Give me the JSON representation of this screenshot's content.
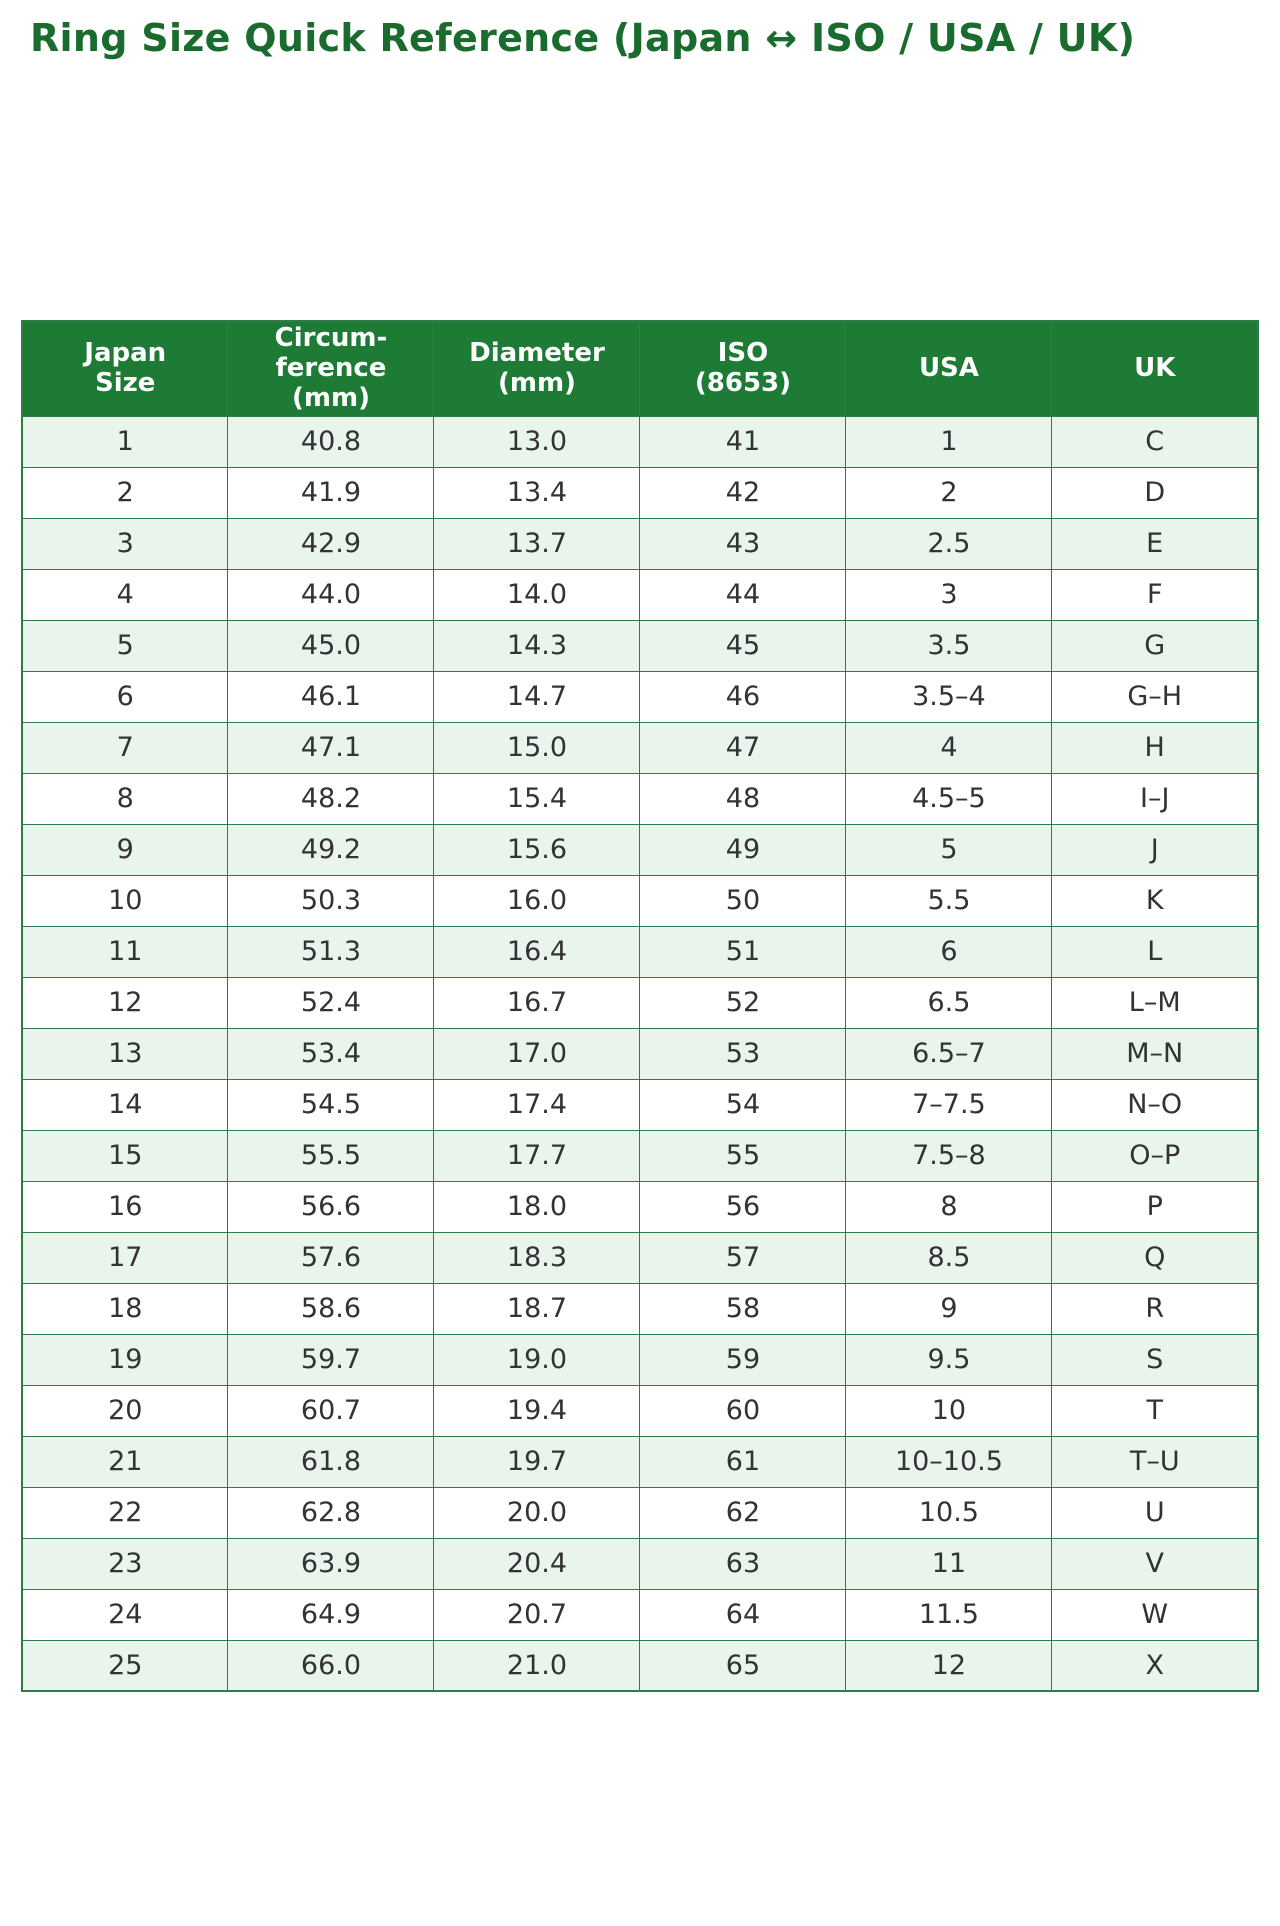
{
  "title": "Ring Size Quick Reference (Japan ↔ ISO / USA / UK)",
  "chart_data": {
    "type": "table",
    "title": "Ring Size Quick Reference (Japan ↔ ISO / USA / UK)",
    "columns": [
      "Japan\nSize",
      "Circum-\nference\n(mm)",
      "Diameter\n(mm)",
      "ISO\n(8653)",
      "USA",
      "UK"
    ],
    "rows": [
      [
        "1",
        "40.8",
        "13.0",
        "41",
        "1",
        "C"
      ],
      [
        "2",
        "41.9",
        "13.4",
        "42",
        "2",
        "D"
      ],
      [
        "3",
        "42.9",
        "13.7",
        "43",
        "2.5",
        "E"
      ],
      [
        "4",
        "44.0",
        "14.0",
        "44",
        "3",
        "F"
      ],
      [
        "5",
        "45.0",
        "14.3",
        "45",
        "3.5",
        "G"
      ],
      [
        "6",
        "46.1",
        "14.7",
        "46",
        "3.5–4",
        "G–H"
      ],
      [
        "7",
        "47.1",
        "15.0",
        "47",
        "4",
        "H"
      ],
      [
        "8",
        "48.2",
        "15.4",
        "48",
        "4.5–5",
        "I–J"
      ],
      [
        "9",
        "49.2",
        "15.6",
        "49",
        "5",
        "J"
      ],
      [
        "10",
        "50.3",
        "16.0",
        "50",
        "5.5",
        "K"
      ],
      [
        "11",
        "51.3",
        "16.4",
        "51",
        "6",
        "L"
      ],
      [
        "12",
        "52.4",
        "16.7",
        "52",
        "6.5",
        "L–M"
      ],
      [
        "13",
        "53.4",
        "17.0",
        "53",
        "6.5–7",
        "M–N"
      ],
      [
        "14",
        "54.5",
        "17.4",
        "54",
        "7–7.5",
        "N–O"
      ],
      [
        "15",
        "55.5",
        "17.7",
        "55",
        "7.5–8",
        "O–P"
      ],
      [
        "16",
        "56.6",
        "18.0",
        "56",
        "8",
        "P"
      ],
      [
        "17",
        "57.6",
        "18.3",
        "57",
        "8.5",
        "Q"
      ],
      [
        "18",
        "58.6",
        "18.7",
        "58",
        "9",
        "R"
      ],
      [
        "19",
        "59.7",
        "19.0",
        "59",
        "9.5",
        "S"
      ],
      [
        "20",
        "60.7",
        "19.4",
        "60",
        "10",
        "T"
      ],
      [
        "21",
        "61.8",
        "19.7",
        "61",
        "10–10.5",
        "T–U"
      ],
      [
        "22",
        "62.8",
        "20.0",
        "62",
        "10.5",
        "U"
      ],
      [
        "23",
        "63.9",
        "20.4",
        "63",
        "11",
        "V"
      ],
      [
        "24",
        "64.9",
        "20.7",
        "64",
        "11.5",
        "W"
      ],
      [
        "25",
        "66.0",
        "21.0",
        "65",
        "12",
        "X"
      ]
    ]
  },
  "colors": {
    "title_text": "#1a6b2e",
    "header_bg": "#1e7b36",
    "header_text": "#ffffff",
    "border": "#2e7d46",
    "row_alt_bg": "#e9f4ec",
    "row_bg": "#ffffff",
    "cell_text": "#333333"
  }
}
